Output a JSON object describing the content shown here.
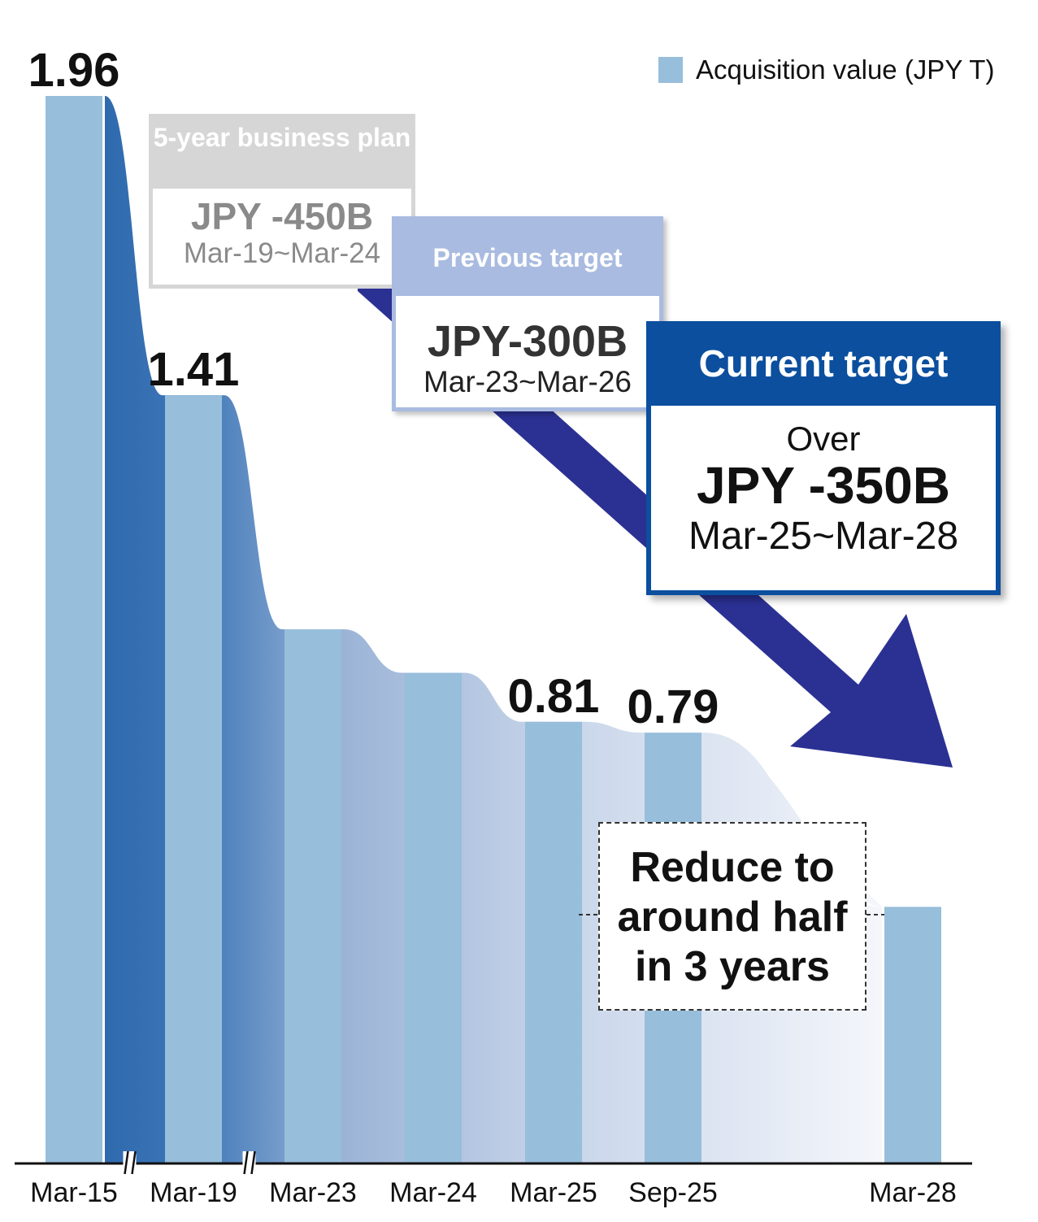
{
  "chart_data": {
    "type": "bar",
    "categories": [
      "Mar-15",
      "Mar-19",
      "Mar-23",
      "Mar-24",
      "Mar-25",
      "Sep-25",
      "Mar-28"
    ],
    "series": [
      {
        "name": "Acquisition value (JPY T)",
        "values": [
          1.96,
          1.41,
          0.98,
          0.9,
          0.81,
          0.79,
          0.47
        ],
        "data_labels": [
          "1.96",
          "1.41",
          "",
          "",
          "0.81",
          "0.79",
          ""
        ]
      }
    ],
    "ylim": [
      0,
      2.0
    ],
    "axis_breaks_after": [
      "Mar-15",
      "Mar-19"
    ],
    "legend_position": "top-right",
    "grid": false,
    "colors": {
      "bar": "#97bedb",
      "trend_dark": "#2f6aae",
      "trend_light": "#eef2f9",
      "arrow": "#2b3193",
      "plan_box": "#d6d6d6",
      "prev_box": "#a9bbe0",
      "current_box": "#0b4f9e"
    }
  },
  "callouts": {
    "plan": {
      "header": "5-year business plan",
      "amount": "JPY -450B",
      "period": "Mar-19~Mar-24"
    },
    "previous": {
      "header": "Previous target",
      "amount": "JPY-300B",
      "period": "Mar-23~Mar-26"
    },
    "current": {
      "header": "Current target",
      "prefix": "Over",
      "amount": "JPY -350B",
      "period": "Mar-25~Mar-28"
    },
    "note": "Reduce to\naround half\nin 3 years"
  }
}
